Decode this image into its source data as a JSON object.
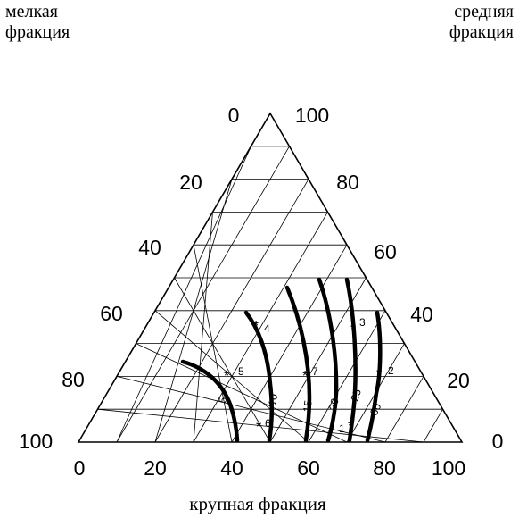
{
  "labels": {
    "fine_line1": "мелкая",
    "fine_line2": "фракция",
    "medium_line1": "средняя",
    "medium_line2": "фракция",
    "coarse": "крупная фракция"
  },
  "axes": {
    "bottom_ticks": [
      "0",
      "20",
      "40",
      "60",
      "80",
      "100"
    ],
    "left_ticks": [
      "0",
      "20",
      "40",
      "60",
      "80",
      "100"
    ],
    "right_ticks": [
      "100",
      "80",
      "60",
      "40",
      "20",
      "0"
    ]
  },
  "curve_labels": [
    "5",
    "10",
    "15",
    "20",
    "25",
    "30"
  ],
  "point_labels": [
    "1",
    "2",
    "3",
    "4",
    "5",
    "6",
    "7"
  ]
}
